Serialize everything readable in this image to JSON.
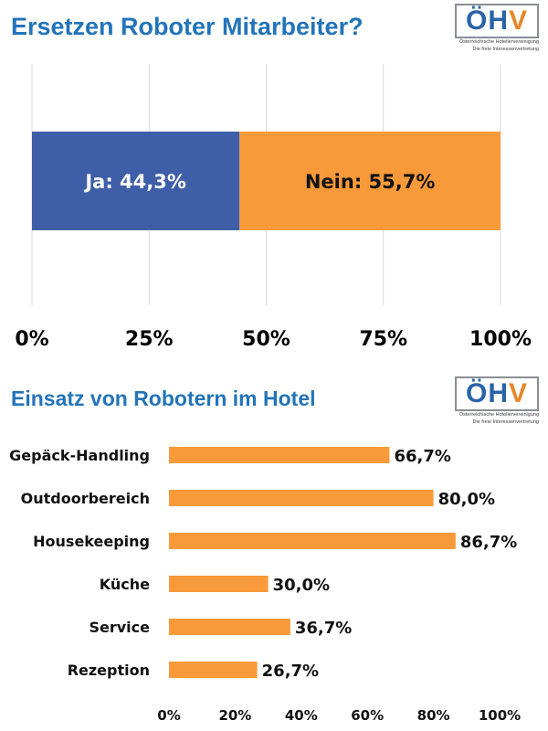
{
  "chart1": {
    "title": "Ersetzen Roboter Mitarbeiter?",
    "chart_data": {
      "type": "bar",
      "orientation": "horizontal-stacked",
      "title": "Ersetzen Roboter Mitarbeiter?",
      "series": [
        {
          "name": "Ja",
          "value": 44.3,
          "label": "Ja: 44,3%",
          "color": "#3e5ea8"
        },
        {
          "name": "Nein",
          "value": 55.7,
          "label": "Nein: 55,7%",
          "color": "#f89a3a"
        }
      ],
      "xlim": [
        0,
        100
      ],
      "xticks": [
        "0%",
        "25%",
        "50%",
        "75%",
        "100%"
      ],
      "grid": true
    }
  },
  "chart2": {
    "title": "Einsatz von Robotern im Hotel",
    "chart_data": {
      "type": "bar",
      "orientation": "horizontal",
      "title": "Einsatz von Robotern im Hotel",
      "categories": [
        "Gepäck-Handling",
        "Outdoorbereich",
        "Housekeeping",
        "Küche",
        "Service",
        "Rezeption"
      ],
      "values": [
        66.7,
        80.0,
        86.7,
        30.0,
        36.7,
        26.7
      ],
      "value_labels": [
        "66,7%",
        "80,0%",
        "86,7%",
        "30,0%",
        "36,7%",
        "26,7%"
      ],
      "xlim": [
        0,
        100
      ],
      "xticks": [
        "0%",
        "20%",
        "40%",
        "60%",
        "80%",
        "100%"
      ],
      "bar_color": "#f89a3a",
      "grid": false
    }
  },
  "logo": {
    "mark_main": "ÖH",
    "mark_accent": "V",
    "line1": "Österreichische Hoteliervereinigung",
    "line2": "Die freie Interessenvertretung",
    "primary_color": "#2a64a8",
    "accent_color": "#e8862b"
  }
}
